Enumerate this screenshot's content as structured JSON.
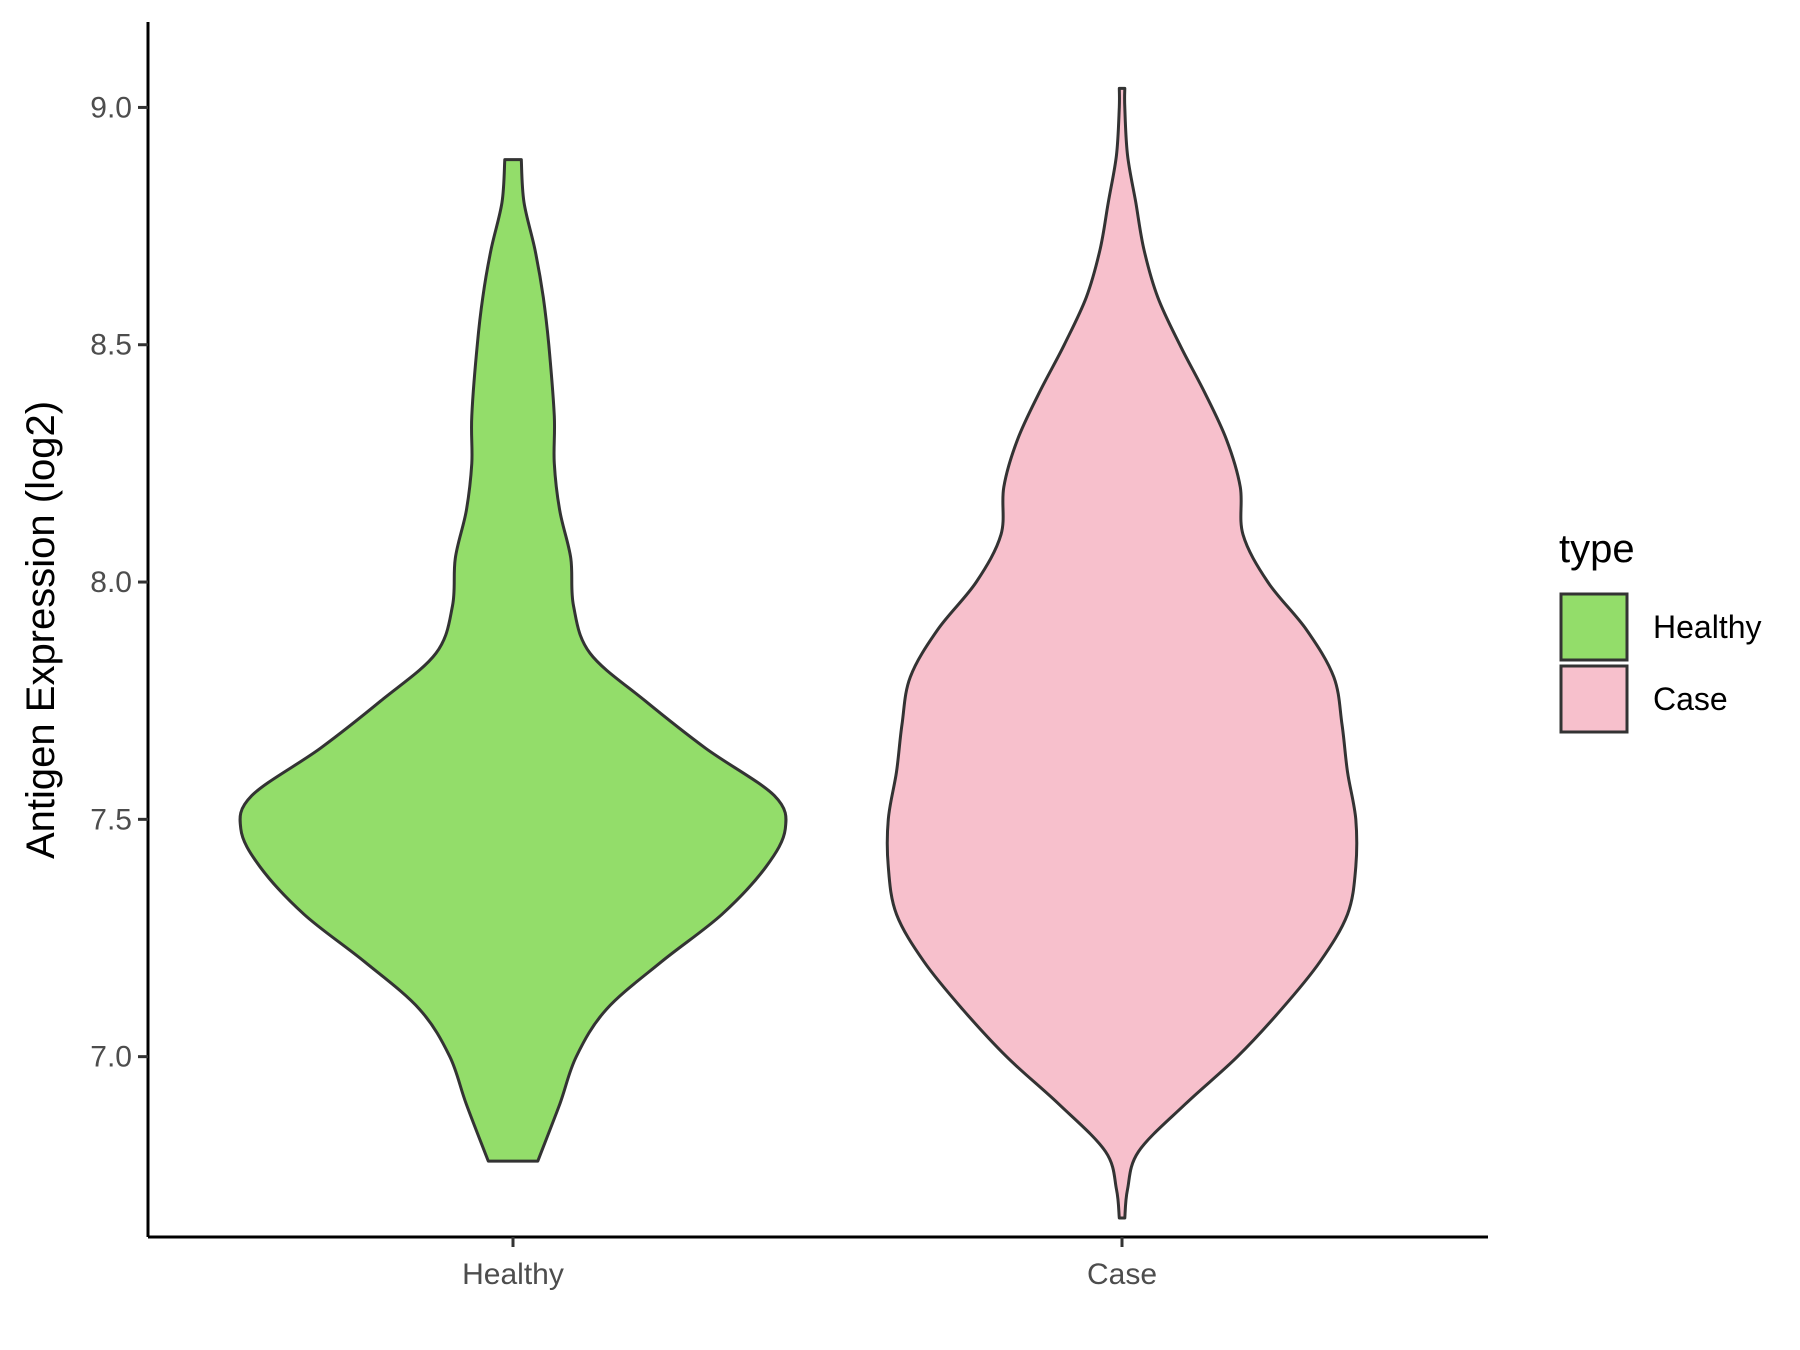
{
  "chart_data": {
    "type": "violin",
    "ylabel": "Antigen Expression (log2)",
    "xlabel": "",
    "categories": [
      "Healthy",
      "Case"
    ],
    "ylim": [
      6.62,
      9.18
    ],
    "yticks": [
      "7.0",
      "7.5",
      "8.0",
      "8.5",
      "9.0"
    ],
    "grid": false,
    "legend": {
      "title": "type",
      "position": "right",
      "entries": [
        {
          "label": "Healthy",
          "color": "#93dd6a"
        },
        {
          "label": "Case",
          "color": "#f7c0cc"
        }
      ]
    },
    "series": [
      {
        "name": "Healthy",
        "color": "#93dd6a",
        "min": 6.78,
        "max": 8.89,
        "density_profile": [
          [
            6.78,
            0.09
          ],
          [
            6.9,
            0.17
          ],
          [
            7.0,
            0.23
          ],
          [
            7.1,
            0.34
          ],
          [
            7.2,
            0.54
          ],
          [
            7.3,
            0.76
          ],
          [
            7.4,
            0.92
          ],
          [
            7.48,
            0.99
          ],
          [
            7.55,
            0.95
          ],
          [
            7.65,
            0.7
          ],
          [
            7.75,
            0.48
          ],
          [
            7.85,
            0.28
          ],
          [
            7.95,
            0.22
          ],
          [
            8.05,
            0.21
          ],
          [
            8.15,
            0.17
          ],
          [
            8.25,
            0.15
          ],
          [
            8.35,
            0.15
          ],
          [
            8.5,
            0.13
          ],
          [
            8.6,
            0.11
          ],
          [
            8.7,
            0.08
          ],
          [
            8.8,
            0.04
          ],
          [
            8.89,
            0.03
          ]
        ]
      },
      {
        "name": "Case",
        "color": "#f7c0cc",
        "min": 6.66,
        "max": 9.04,
        "density_profile": [
          [
            6.66,
            0.01
          ],
          [
            6.72,
            0.02
          ],
          [
            6.8,
            0.06
          ],
          [
            6.9,
            0.23
          ],
          [
            7.0,
            0.42
          ],
          [
            7.1,
            0.58
          ],
          [
            7.2,
            0.72
          ],
          [
            7.3,
            0.82
          ],
          [
            7.4,
            0.85
          ],
          [
            7.5,
            0.85
          ],
          [
            7.6,
            0.82
          ],
          [
            7.7,
            0.8
          ],
          [
            7.8,
            0.77
          ],
          [
            7.9,
            0.67
          ],
          [
            8.0,
            0.53
          ],
          [
            8.1,
            0.44
          ],
          [
            8.2,
            0.43
          ],
          [
            8.3,
            0.38
          ],
          [
            8.4,
            0.3
          ],
          [
            8.5,
            0.21
          ],
          [
            8.6,
            0.13
          ],
          [
            8.7,
            0.08
          ],
          [
            8.8,
            0.05
          ],
          [
            8.9,
            0.02
          ],
          [
            9.0,
            0.01
          ],
          [
            9.04,
            0.01
          ]
        ]
      }
    ]
  }
}
